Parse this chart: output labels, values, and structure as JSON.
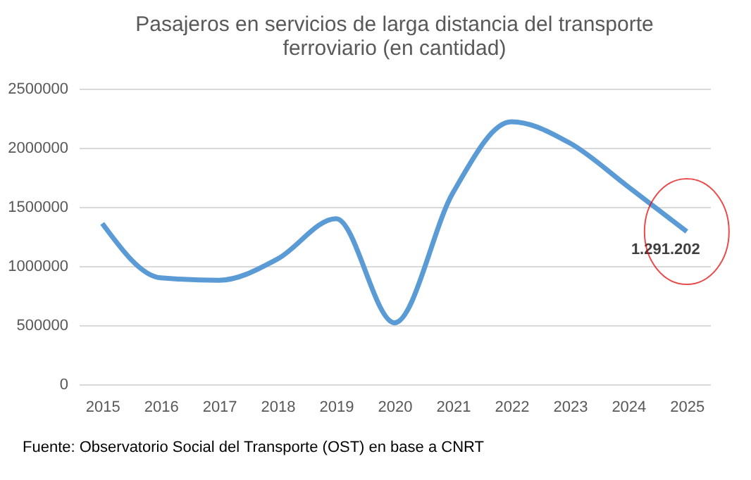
{
  "chart_data": {
    "type": "line",
    "title": "Pasajeros en servicios de larga distancia del transporte ferroviario  (en cantidad)",
    "categories": [
      "2015",
      "2016",
      "2017",
      "2018",
      "2019",
      "2020",
      "2021",
      "2022",
      "2023",
      "2024",
      "2025"
    ],
    "series": [
      {
        "color": "#5b9bd5",
        "values": [
          1360000,
          900000,
          880000,
          1060000,
          1400000,
          520000,
          1620000,
          2220000,
          2040000,
          1670000,
          1291202
        ],
        "value_labels": [
          null,
          null,
          null,
          null,
          null,
          null,
          null,
          null,
          null,
          null,
          "1.291.202"
        ]
      }
    ],
    "ylim": [
      0,
      2500000
    ],
    "yticks": [
      0,
      500000,
      1000000,
      1500000,
      2000000,
      2500000
    ],
    "grid": "y",
    "marker": "none",
    "line_style": "solid",
    "annotations": [
      "Fuente: Observatorio Social del Transporte (OST) en base a CNRT"
    ]
  }
}
